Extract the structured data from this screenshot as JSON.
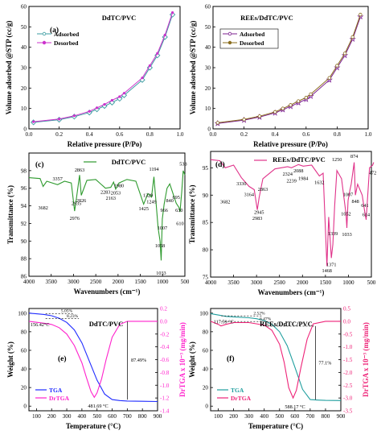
{
  "chart_data": [
    {
      "panel": "(a)",
      "type": "line",
      "title": "DdTC/PVC",
      "xlabel": "Relative pressure (P/Po)",
      "ylabel": "Volume adsorbed @STP (cc/g)",
      "xlim": [
        0.0,
        1.0
      ],
      "ylim": [
        0,
        60
      ],
      "xticks": [
        "0.0",
        "0.2",
        "0.4",
        "0.6",
        "0.8",
        "1.0"
      ],
      "yticks": [
        "0",
        "10",
        "20",
        "30",
        "40",
        "50",
        "60"
      ],
      "legend_position": "upper-left",
      "series": [
        {
          "name": "Adsorbed",
          "color": "#3a9ba0",
          "marker": "diamond-open",
          "x": [
            0.03,
            0.2,
            0.3,
            0.4,
            0.45,
            0.5,
            0.55,
            0.6,
            0.63,
            0.75,
            0.8,
            0.85,
            0.9,
            0.95
          ],
          "y": [
            3.2,
            4.5,
            6,
            8,
            9.6,
            11.2,
            12.9,
            14.8,
            16.5,
            24,
            30,
            36,
            45,
            56
          ]
        },
        {
          "name": "Desorbed",
          "color": "#cc33cc",
          "marker": "dot",
          "x": [
            0.03,
            0.2,
            0.3,
            0.4,
            0.45,
            0.5,
            0.55,
            0.6,
            0.63,
            0.75,
            0.8,
            0.85,
            0.9,
            0.95
          ],
          "y": [
            3.5,
            4.8,
            6.4,
            8.6,
            10.3,
            12,
            14,
            15.8,
            17.5,
            25,
            31,
            37,
            46,
            57
          ]
        }
      ]
    },
    {
      "panel": "(b)",
      "type": "line",
      "title": "REEs/DdTC/PVC",
      "xlabel": "Relative pressure (P/Po)",
      "ylabel": "Volume adsorbed @STP (cc/g)",
      "xlim": [
        0.0,
        1.0
      ],
      "ylim": [
        0,
        60
      ],
      "xticks": [
        "0.0",
        "0.2",
        "0.4",
        "0.6",
        "0.8",
        "1.0"
      ],
      "yticks": [
        "0",
        "10",
        "20",
        "30",
        "40",
        "50",
        "60"
      ],
      "legend_position": "upper-left",
      "series": [
        {
          "name": "Adsorbed",
          "color": "#7b1f8f",
          "marker": "star",
          "x": [
            0.03,
            0.2,
            0.3,
            0.4,
            0.45,
            0.5,
            0.55,
            0.6,
            0.63,
            0.75,
            0.8,
            0.85,
            0.9,
            0.95
          ],
          "y": [
            2.7,
            4.3,
            5.8,
            7.8,
            9.4,
            11,
            12.8,
            14.5,
            16,
            24,
            30,
            36,
            44,
            55
          ]
        },
        {
          "name": "Desorbed",
          "color": "#8a6d1e",
          "marker": "circle-open",
          "x": [
            0.03,
            0.2,
            0.3,
            0.4,
            0.45,
            0.5,
            0.55,
            0.6,
            0.63,
            0.75,
            0.8,
            0.85,
            0.9,
            0.95
          ],
          "y": [
            3.0,
            4.6,
            6.2,
            8.3,
            10,
            11.7,
            13.6,
            15.3,
            17,
            25,
            31,
            37,
            45,
            56
          ]
        }
      ]
    },
    {
      "panel": "(c)",
      "type": "line",
      "title": "DdTC/PVC",
      "xlabel": "Wavenumbers (cm⁻¹)",
      "ylabel": "Transmittance (%)",
      "xlim": [
        4000,
        500
      ],
      "ylim": [
        86,
        100
      ],
      "xticks": [
        "4000",
        "3500",
        "3000",
        "2500",
        "2000",
        "1500",
        "1000",
        "500"
      ],
      "yticks": [
        "86",
        "88",
        "90",
        "92",
        "94",
        "96",
        "98"
      ],
      "series": [
        {
          "name": "DdTC/PVC",
          "color": "#2e9a2e",
          "x": [
            4000,
            3750,
            3682,
            3600,
            3357,
            3200,
            3050,
            2976,
            2935,
            2863,
            2826,
            2700,
            2500,
            2283,
            2163,
            2100,
            2053,
            1980,
            1800,
            1600,
            1425,
            1329,
            1249,
            1194,
            1100,
            1058,
            1033,
            1007,
            966,
            900,
            840,
            695,
            630,
            610,
            570,
            538,
            500
          ],
          "y": [
            97.2,
            97.1,
            96.2,
            96.8,
            96.4,
            96.8,
            96.6,
            93.4,
            94.8,
            97.5,
            95.2,
            96.9,
            97.0,
            96.0,
            96.1,
            96.7,
            95.9,
            96.6,
            97.0,
            96.8,
            94.2,
            95.4,
            95.0,
            97.3,
            91.5,
            90.0,
            87.8,
            92.5,
            94.2,
            96.0,
            96.5,
            94.3,
            93.8,
            93.3,
            95.6,
            98.0,
            97.5
          ]
        }
      ],
      "peak_labels": [
        "3682",
        "3357",
        "2863",
        "2976",
        "2935",
        "2826",
        "2283",
        "2163",
        "2053",
        "1980",
        "1194",
        "1425",
        "1329",
        "1249",
        "1058",
        "1033",
        "1007",
        "966",
        "840",
        "695",
        "630",
        "610",
        "538"
      ]
    },
    {
      "panel": "(d)",
      "type": "line",
      "title": "REEs/DdTC/PVC",
      "xlabel": "Wavenumbers (cm⁻¹)",
      "ylabel": "Transmittance (%)",
      "xlim": [
        4000,
        500
      ],
      "ylim": [
        75,
        98
      ],
      "xticks": [
        "4000",
        "3500",
        "3000",
        "2500",
        "2000",
        "1500",
        "1000",
        "500"
      ],
      "yticks": [
        "75",
        "80",
        "85",
        "90",
        "95"
      ],
      "series": [
        {
          "name": "REEs/DdTC/PVC",
          "color": "#e0338a",
          "x": [
            4000,
            3800,
            3682,
            3500,
            3330,
            3164,
            3050,
            2983,
            2945,
            2863,
            2600,
            2324,
            2239,
            2088,
            1984,
            1800,
            1632,
            1550,
            1468,
            1430,
            1371,
            1339,
            1300,
            1250,
            1150,
            1052,
            1033,
            1007,
            966,
            940,
            874,
            848,
            800,
            700,
            641,
            614,
            540,
            472,
            450
          ],
          "y": [
            96.5,
            96.3,
            95.0,
            95.5,
            93.2,
            91.6,
            91.0,
            87.3,
            89.5,
            93.0,
            94.8,
            95.2,
            95.0,
            95.6,
            95.3,
            95.5,
            93.5,
            94.0,
            77.0,
            86.0,
            78.5,
            81.0,
            88.0,
            94.5,
            93.0,
            86.5,
            84.0,
            89.0,
            91.0,
            92.0,
            96.0,
            90.0,
            92.0,
            90.0,
            86.8,
            85.5,
            95.0,
            95.5,
            96.0
          ]
        }
      ],
      "peak_labels": [
        "3682",
        "3330",
        "3164",
        "2983",
        "2945",
        "2863",
        "2324",
        "2239",
        "2088",
        "1984",
        "1632",
        "1468",
        "1371",
        "1339",
        "1250",
        "1052",
        "1033",
        "1007",
        "874",
        "848",
        "641",
        "614",
        "472"
      ]
    },
    {
      "panel": "(e)",
      "type": "line",
      "title": "DdTC/PVC",
      "xlabel": "Temperature (°C)",
      "ylabel": "Weight (%)",
      "ylabel_right": "DrTGA x 10⁻³ (mg/min)",
      "xlim": [
        50,
        900
      ],
      "ylim": [
        -5,
        105
      ],
      "y2lim": [
        -1.4,
        0.2
      ],
      "xticks": [
        "100",
        "200",
        "300",
        "400",
        "500",
        "600",
        "700",
        "800",
        "900"
      ],
      "yticks": [
        "0",
        "20",
        "40",
        "60",
        "80",
        "100"
      ],
      "y2ticks": [
        "0.2",
        "0.0",
        "-0.2",
        "-0.4",
        "-0.6",
        "-0.8",
        "-1.0",
        "-1.2",
        "-1.4"
      ],
      "legend_position": "lower-left",
      "series": [
        {
          "name": "TGA",
          "color": "#1f2bff",
          "axis": "left",
          "x": [
            50,
            100,
            150,
            200,
            250,
            300,
            350,
            400,
            450,
            500,
            550,
            600,
            650,
            700,
            800,
            900
          ],
          "y": [
            100,
            99.3,
            98.6,
            97.2,
            94.5,
            90,
            82,
            68,
            48,
            28,
            13,
            7,
            6,
            5.5,
            5.2,
            5.0
          ]
        },
        {
          "name": "DrTGA",
          "color": "#ff22cc",
          "axis": "right",
          "x": [
            50,
            150,
            200,
            250,
            300,
            350,
            400,
            430,
            460,
            481.69,
            500,
            530,
            560,
            600,
            650,
            700,
            800,
            900
          ],
          "y": [
            0.0,
            -0.03,
            -0.05,
            -0.1,
            -0.2,
            -0.38,
            -0.65,
            -0.88,
            -1.1,
            -1.19,
            -1.12,
            -0.9,
            -0.6,
            -0.25,
            -0.05,
            0.0,
            0.0,
            0.0
          ]
        }
      ],
      "annotations": [
        "156.42°C",
        "5.05%",
        "8.23%",
        "87.49%",
        "481.69 °C"
      ]
    },
    {
      "panel": "(f)",
      "type": "line",
      "title": "REEs/DdTC/PVC",
      "xlabel": "Temperature (°C)",
      "ylabel": "Weight (%)",
      "ylabel_right": "DrTGA x 10⁻³ (mg/min)",
      "xlim": [
        50,
        900
      ],
      "ylim": [
        -5,
        105
      ],
      "y2lim": [
        -3.5,
        0.5
      ],
      "xticks": [
        "100",
        "200",
        "300",
        "400",
        "500",
        "600",
        "700",
        "800",
        "900"
      ],
      "yticks": [
        "0",
        "20",
        "40",
        "60",
        "80",
        "100"
      ],
      "y2ticks": [
        "0.5",
        "0.0",
        "-0.5",
        "-1.0",
        "-1.5",
        "-2.0",
        "-2.5",
        "-3.0",
        "-3.5"
      ],
      "legend_position": "lower-left",
      "series": [
        {
          "name": "TGA",
          "color": "#1f9e9e",
          "axis": "left",
          "x": [
            50,
            100,
            150,
            200,
            300,
            350,
            400,
            450,
            500,
            550,
            600,
            650,
            700,
            750,
            800,
            900
          ],
          "y": [
            99.5,
            98,
            96.5,
            96,
            95,
            94,
            92,
            88,
            80,
            65,
            42,
            18,
            7,
            6.5,
            6.2,
            6.0
          ]
        },
        {
          "name": "DrTGA",
          "color": "#ee2277",
          "axis": "right",
          "x": [
            50,
            100,
            117.59,
            150,
            200,
            300,
            400,
            450,
            500,
            530,
            560,
            588.17,
            610,
            640,
            680,
            720,
            800,
            900
          ],
          "y": [
            0.0,
            -0.12,
            -0.18,
            -0.12,
            -0.05,
            -0.05,
            -0.15,
            -0.35,
            -0.9,
            -1.6,
            -2.6,
            -3.0,
            -2.7,
            -1.8,
            -0.7,
            -0.1,
            0.0,
            0.0
          ]
        }
      ],
      "annotations": [
        "117.59 °C",
        "2.52%",
        "6.47%",
        "77.1%",
        "588.17 °C"
      ]
    }
  ]
}
